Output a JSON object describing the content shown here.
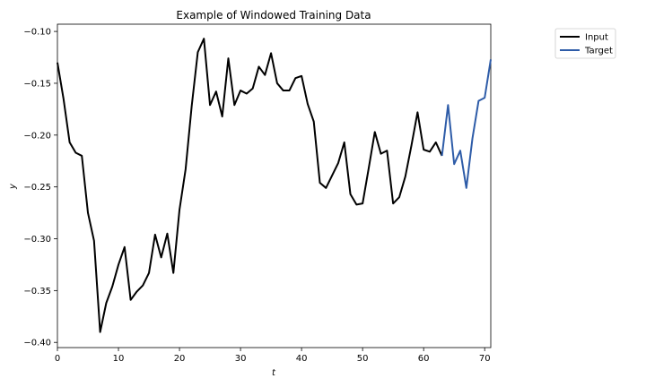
{
  "chart_data": {
    "type": "line",
    "title": "Example of Windowed Training Data",
    "xlabel": "t",
    "ylabel": "y",
    "xlim": [
      0,
      71
    ],
    "ylim": [
      -0.405,
      -0.093
    ],
    "x_ticks": [
      0,
      10,
      20,
      30,
      40,
      50,
      60,
      70
    ],
    "y_ticks": [
      -0.1,
      -0.15,
      -0.2,
      -0.25,
      -0.3,
      -0.35,
      -0.4
    ],
    "y_tick_labels": [
      "−0.10",
      "−0.15",
      "−0.20",
      "−0.25",
      "−0.30",
      "−0.35",
      "−0.40"
    ],
    "grid": false,
    "legend_position": "upper-right-outside",
    "series": [
      {
        "name": "Input",
        "color": "#000000",
        "x": [
          0,
          1,
          2,
          3,
          4,
          5,
          6,
          7,
          8,
          9,
          10,
          11,
          12,
          13,
          14,
          15,
          16,
          17,
          18,
          19,
          20,
          21,
          22,
          23,
          24,
          25,
          26,
          27,
          28,
          29,
          30,
          31,
          32,
          33,
          34,
          35,
          36,
          37,
          38,
          39,
          40,
          41,
          42,
          43,
          44,
          45,
          46,
          47,
          48,
          49,
          50,
          51,
          52,
          53,
          54,
          55,
          56,
          57,
          58,
          59,
          60,
          61,
          62,
          63
        ],
        "values": [
          -0.13,
          -0.165,
          -0.207,
          -0.217,
          -0.22,
          -0.275,
          -0.302,
          -0.39,
          -0.362,
          -0.346,
          -0.325,
          -0.308,
          -0.359,
          -0.351,
          -0.345,
          -0.333,
          -0.296,
          -0.318,
          -0.295,
          -0.333,
          -0.272,
          -0.233,
          -0.172,
          -0.12,
          -0.107,
          -0.171,
          -0.158,
          -0.182,
          -0.126,
          -0.171,
          -0.157,
          -0.16,
          -0.155,
          -0.134,
          -0.142,
          -0.121,
          -0.15,
          -0.157,
          -0.157,
          -0.145,
          -0.143,
          -0.17,
          -0.187,
          -0.246,
          -0.251,
          -0.239,
          -0.227,
          -0.207,
          -0.257,
          -0.267,
          -0.266,
          -0.232,
          -0.197,
          -0.218,
          -0.215,
          -0.266,
          -0.26,
          -0.24,
          -0.21,
          -0.178,
          -0.214,
          -0.216,
          -0.207,
          -0.22
        ]
      },
      {
        "name": "Target",
        "color": "#2e5ca8",
        "x": [
          63,
          64,
          65,
          66,
          67,
          68,
          69,
          70,
          71
        ],
        "values": [
          -0.22,
          -0.171,
          -0.228,
          -0.215,
          -0.251,
          -0.203,
          -0.167,
          -0.164,
          -0.127
        ]
      }
    ]
  }
}
